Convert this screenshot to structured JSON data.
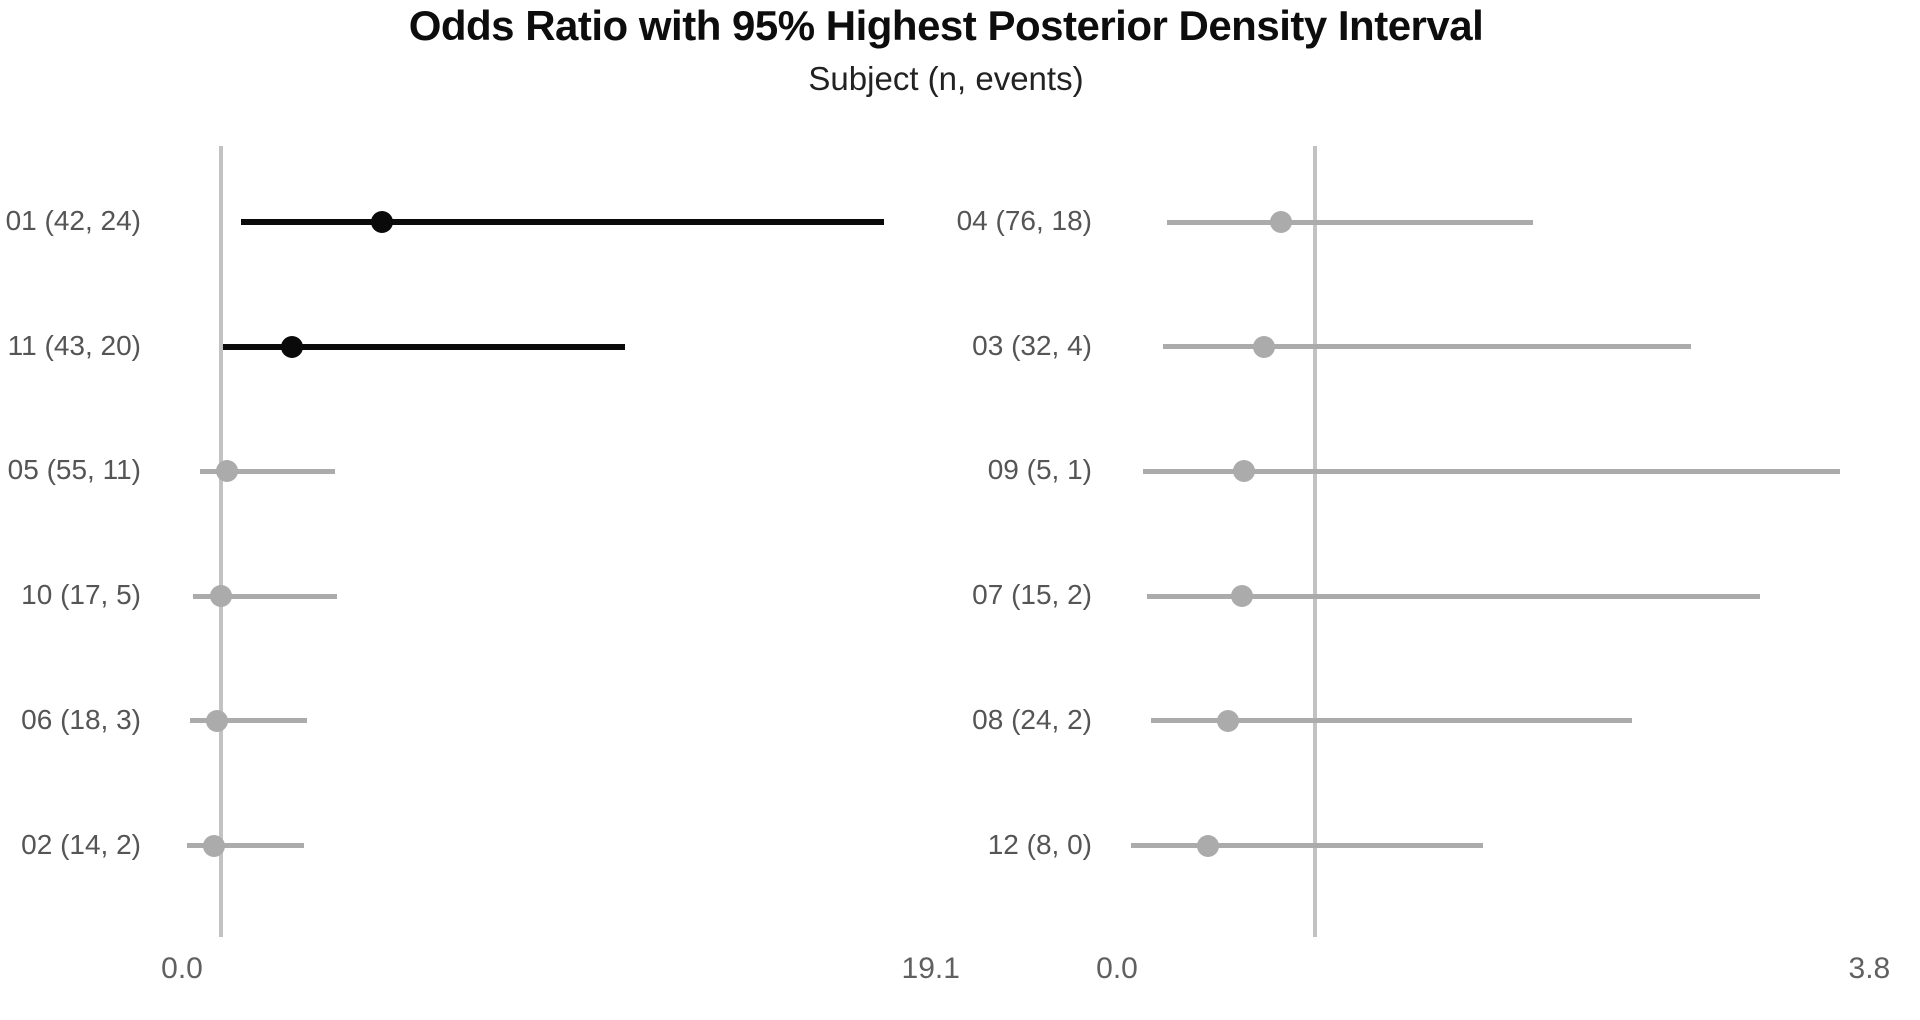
{
  "chart_data": {
    "type": "scatter",
    "variant": "forest-plot-with-interval-bars",
    "title": "Odds Ratio with 95% Highest Posterior Density Interval",
    "subtitle": "Subject (n, events)",
    "grid": false,
    "legend": false,
    "reference_line_x": 1.0,
    "colors": {
      "significant": "#0a0a0a",
      "nonsignificant": "#ababab",
      "reference_line": "#c2c2c2",
      "row_label_text": "#555555",
      "tick_label_text": "#606060",
      "background": "#ffffff"
    },
    "panels": [
      {
        "side": "left",
        "xlim": [
          0.0,
          19.1
        ],
        "x_ticks": [
          0.0,
          19.1
        ],
        "x_tick_labels": [
          "0.0",
          "19.1"
        ],
        "rows": [
          {
            "label": "01 (42, 24)",
            "subject": "01",
            "n": 42,
            "events": 24,
            "or": 5.1,
            "hpd_low": 1.5,
            "hpd_high": 17.9,
            "significant": true
          },
          {
            "label": "11 (43, 20)",
            "subject": "11",
            "n": 43,
            "events": 20,
            "or": 2.8,
            "hpd_low": 1.05,
            "hpd_high": 11.3,
            "significant": true
          },
          {
            "label": "05 (55, 11)",
            "subject": "05",
            "n": 55,
            "events": 11,
            "or": 1.15,
            "hpd_low": 0.45,
            "hpd_high": 3.9,
            "significant": false
          },
          {
            "label": "10 (17, 5)",
            "subject": "10",
            "n": 17,
            "events": 5,
            "or": 1.0,
            "hpd_low": 0.27,
            "hpd_high": 3.95,
            "significant": false
          },
          {
            "label": "06 (18, 3)",
            "subject": "06",
            "n": 18,
            "events": 3,
            "or": 0.9,
            "hpd_low": 0.2,
            "hpd_high": 3.2,
            "significant": false
          },
          {
            "label": "02 (14, 2)",
            "subject": "02",
            "n": 14,
            "events": 2,
            "or": 0.82,
            "hpd_low": 0.13,
            "hpd_high": 3.1,
            "significant": false
          }
        ]
      },
      {
        "side": "right",
        "xlim": [
          0.0,
          3.8
        ],
        "x_ticks": [
          0.0,
          3.8
        ],
        "x_tick_labels": [
          "0.0",
          "3.8"
        ],
        "rows": [
          {
            "label": "04 (76, 18)",
            "subject": "04",
            "n": 76,
            "events": 18,
            "or": 0.83,
            "hpd_low": 0.25,
            "hpd_high": 2.1,
            "significant": false
          },
          {
            "label": "03 (32, 4)",
            "subject": "03",
            "n": 32,
            "events": 4,
            "or": 0.74,
            "hpd_low": 0.23,
            "hpd_high": 2.9,
            "significant": false
          },
          {
            "label": "09 (5, 1)",
            "subject": "09",
            "n": 5,
            "events": 1,
            "or": 0.64,
            "hpd_low": 0.13,
            "hpd_high": 3.65,
            "significant": false
          },
          {
            "label": "07 (15, 2)",
            "subject": "07",
            "n": 15,
            "events": 2,
            "or": 0.63,
            "hpd_low": 0.15,
            "hpd_high": 3.25,
            "significant": false
          },
          {
            "label": "08 (24, 2)",
            "subject": "08",
            "n": 24,
            "events": 2,
            "or": 0.56,
            "hpd_low": 0.17,
            "hpd_high": 2.6,
            "significant": false
          },
          {
            "label": "12 (8, 0)",
            "subject": "12",
            "n": 8,
            "events": 0,
            "or": 0.46,
            "hpd_low": 0.07,
            "hpd_high": 1.85,
            "significant": false
          }
        ]
      }
    ]
  }
}
